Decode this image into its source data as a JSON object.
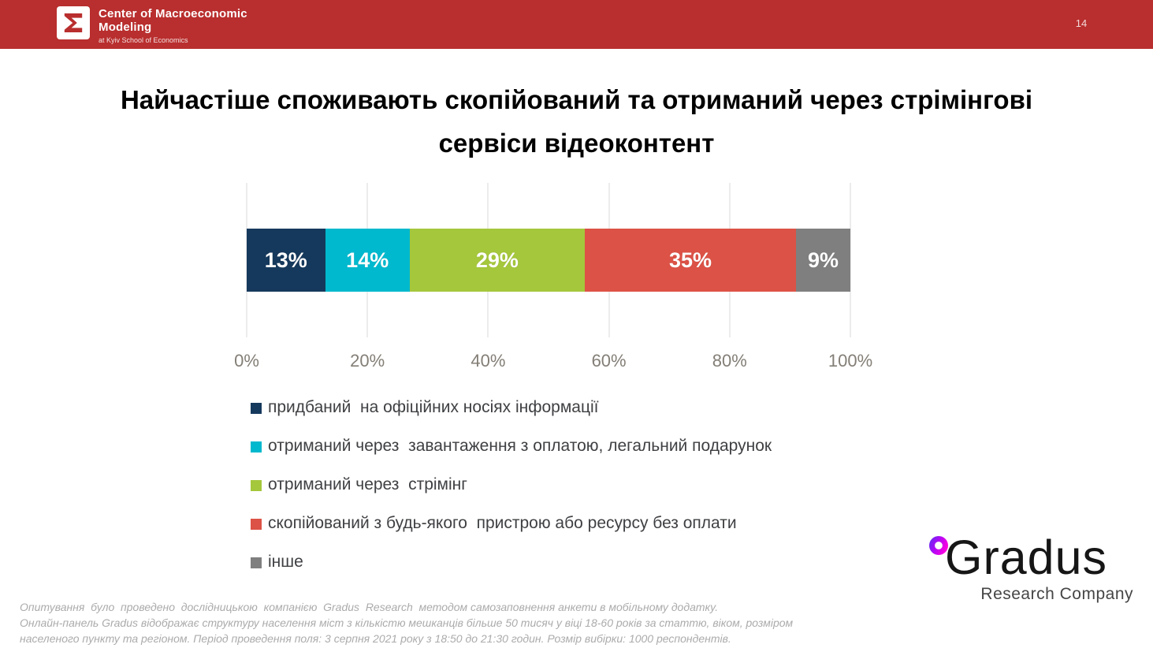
{
  "header": {
    "org_line1": "Center of Macroeconomic",
    "org_line2": "Modeling",
    "org_line3": "at Kyiv School of Economics",
    "page_number": "14",
    "bg_color": "#B92E2E"
  },
  "title": {
    "lines": [
      "Найчастіше споживають скопійований та отриманий через стрімінгові",
      "сервіси відеоконтент"
    ]
  },
  "chart_data": {
    "type": "bar",
    "subtype": "horizontal-stacked",
    "title": "Найчастіше споживають скопійований та отриманий через стрімінгові сервіси відеоконтент",
    "series": [
      {
        "name": "придбаний  на офіційних носіях інформації",
        "value": 13,
        "label": "13%",
        "color": "#15395C"
      },
      {
        "name": "отриманий через  завантаження з оплатою, легальний подарунок",
        "value": 14,
        "label": "14%",
        "color": "#00B9CE"
      },
      {
        "name": "отриманий через  стрімінг",
        "value": 29,
        "label": "29%",
        "color": "#A5C73C"
      },
      {
        "name": "скопійований з будь-якого  пристрою або ресурсу без оплати",
        "value": 35,
        "label": "35%",
        "color": "#DC5246"
      },
      {
        "name": "інше",
        "value": 9,
        "label": "9%",
        "color": "#7F7F7F"
      }
    ],
    "x_ticks": [
      "0%",
      "20%",
      "40%",
      "60%",
      "80%",
      "100%"
    ],
    "xlim": [
      0,
      100
    ],
    "grid": true,
    "gridline_color": "#D9D9D9",
    "legend_position": "bottom-left"
  },
  "footnote": {
    "lines": [
      "Опитування  було  проведено  дослідницькою  компанією  Gradus  Research  методом самозаповнення анкети в мобільному додатку.",
      "Онлайн-панель Gradus відображає структуру населення міст з кількістю мешканців більше 50 тисяч у віці 18-60 років за статтю, віком, розміром",
      "населеного пункту та регіоном. Період проведення поля: 3 серпня 2021 року з 18:50 до 21:30 годин. Розмір вибірки: 1000 респондентів."
    ]
  },
  "gradus_logo": {
    "wordmark": "Gradus",
    "subtitle": "Research Company"
  }
}
